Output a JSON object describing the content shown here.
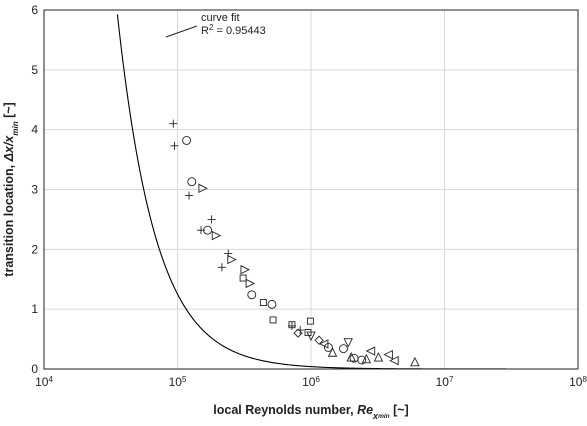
{
  "chart_data": {
    "type": "scatter",
    "x_scale": "log",
    "x_ticks": [
      10000,
      100000,
      1000000,
      10000000,
      100000000
    ],
    "x_tick_labels": {
      "base": [
        "10",
        "10",
        "10",
        "10",
        "10"
      ],
      "exp": [
        "4",
        "5",
        "6",
        "7",
        "8"
      ]
    },
    "y_ticks": [
      0,
      1,
      2,
      3,
      4,
      5,
      6
    ],
    "y_tick_labels": [
      "0",
      "1",
      "2",
      "3",
      "4",
      "5",
      "6"
    ],
    "xlim": [
      10000,
      100000000
    ],
    "ylim": [
      0,
      6
    ],
    "grid": true,
    "xlabel": {
      "main": "local Reynolds number, ",
      "sym": "Re",
      "sub": "x",
      "subsub": "min",
      "unit": " [~]"
    },
    "ylabel": {
      "main": "transition location, ",
      "sym": "Δx/x",
      "sub": "min",
      "unit": " [~]"
    },
    "annotation": {
      "line1": "curve fit",
      "r2_prefix": "R",
      "r2_sup": "2",
      "r2_suffix": " = 0.95443"
    },
    "fit": {
      "type": "power",
      "coefficient": 39600000.0,
      "exponent": -1.5,
      "color": "#000000"
    },
    "series": [
      {
        "marker": "plus",
        "points": [
          [
            93000,
            4.1
          ],
          [
            95000,
            3.73
          ],
          [
            122000,
            2.9
          ],
          [
            150000,
            2.32
          ],
          [
            180000,
            2.5
          ],
          [
            215000,
            1.7
          ],
          [
            240000,
            1.93
          ],
          [
            720000,
            0.72
          ],
          [
            830000,
            0.65
          ]
        ]
      },
      {
        "marker": "circle",
        "points": [
          [
            117000,
            3.82
          ],
          [
            128000,
            3.13
          ],
          [
            168000,
            2.32
          ],
          [
            360000,
            1.24
          ],
          [
            510000,
            1.08
          ],
          [
            1350000,
            0.36
          ],
          [
            1750000,
            0.34
          ],
          [
            2100000,
            0.18
          ],
          [
            2400000,
            0.15
          ]
        ]
      },
      {
        "marker": "triangle-right",
        "points": [
          [
            155000,
            3.02
          ],
          [
            195000,
            2.23
          ],
          [
            255000,
            1.83
          ],
          [
            320000,
            1.66
          ],
          [
            350000,
            1.43
          ]
        ]
      },
      {
        "marker": "square",
        "points": [
          [
            310000,
            1.52
          ],
          [
            440000,
            1.11
          ],
          [
            520000,
            0.82
          ],
          [
            720000,
            0.74
          ],
          [
            950000,
            0.61
          ],
          [
            990000,
            0.8
          ]
        ]
      },
      {
        "marker": "diamond",
        "points": [
          [
            800000,
            0.6
          ],
          [
            1150000,
            0.48
          ]
        ]
      },
      {
        "marker": "triangle-down",
        "points": [
          [
            1900000,
            0.44
          ],
          [
            1000000,
            0.55
          ]
        ]
      },
      {
        "marker": "triangle-left",
        "points": [
          [
            1250000,
            0.42
          ],
          [
            2800000,
            0.3
          ],
          [
            3800000,
            0.24
          ],
          [
            4200000,
            0.14
          ]
        ]
      },
      {
        "marker": "triangle-up",
        "points": [
          [
            1450000,
            0.28
          ],
          [
            2000000,
            0.2
          ],
          [
            2600000,
            0.17
          ],
          [
            3200000,
            0.2
          ],
          [
            6000000,
            0.12
          ]
        ]
      }
    ]
  }
}
